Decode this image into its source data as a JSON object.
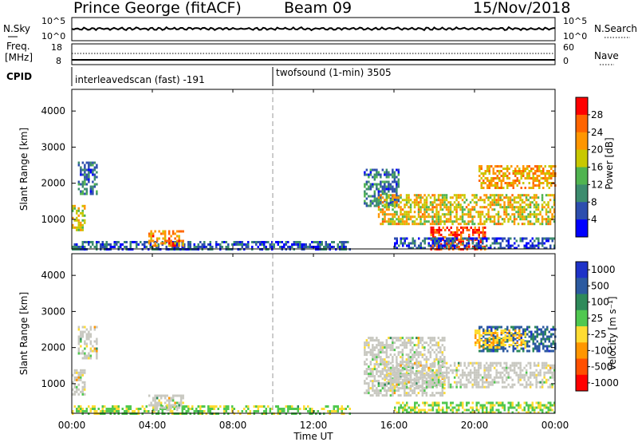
{
  "header": {
    "station": "Prince George (fitACF)",
    "beam": "Beam 09",
    "date": "15/Nov/2018"
  },
  "top_strip": {
    "left_label": "N.Sky",
    "right_label": "N.Search",
    "left_ticks": [
      "10^5",
      "10^0"
    ],
    "right_ticks": [
      "10^5",
      "10^0"
    ]
  },
  "freq_strip": {
    "label": "Freq.",
    "unit": "[MHz]",
    "left_ticks": [
      "18",
      "8"
    ],
    "right_ticks": [
      "60",
      "0"
    ],
    "right_label": "Nave"
  },
  "cpid": {
    "label": "CPID",
    "modes": [
      {
        "name": "interleavedscan (fast) -191",
        "start_hour": 0
      },
      {
        "name": "twofsound (1-min) 3505",
        "start_hour": 10
      }
    ]
  },
  "x_axis": {
    "label": "Time UT",
    "ticks": [
      "00:00",
      "04:00",
      "08:00",
      "12:00",
      "16:00",
      "20:00",
      "00:00"
    ],
    "range_hours": [
      0,
      24
    ]
  },
  "colors": {
    "ground_scatter": "#c8c8c0",
    "power_scale": [
      "#0000ff",
      "#2d4eae",
      "#3c8c6e",
      "#50b450",
      "#c8c800",
      "#ff9600",
      "#ff6400",
      "#ff0000"
    ],
    "velocity_scale": [
      "#1e32c8",
      "#2c5aa0",
      "#2e8a5a",
      "#50c850",
      "#ffdc32",
      "#ff9600",
      "#ff5000",
      "#ff0000"
    ]
  },
  "chart_data": [
    {
      "type": "heatmap",
      "panel": "power",
      "ylabel": "Slant Range [km]",
      "y_ticks": [
        1000,
        2000,
        3000,
        4000
      ],
      "ylim": [
        180,
        4600
      ],
      "xlim": [
        0,
        24
      ],
      "colorbar": {
        "label": "Power [dB]",
        "ticks": [
          "4",
          "8",
          "12",
          "16",
          "20",
          "24",
          "28"
        ],
        "range": [
          0,
          30
        ]
      },
      "regions": [
        {
          "x": [
            0.0,
            0.6
          ],
          "y": [
            700,
            1400
          ],
          "value": 16
        },
        {
          "x": [
            0.3,
            1.2
          ],
          "y": [
            1700,
            2600
          ],
          "value": 8
        },
        {
          "x": [
            0.0,
            13.8
          ],
          "y": [
            180,
            400
          ],
          "value": 6
        },
        {
          "x": [
            3.8,
            5.5
          ],
          "y": [
            300,
            700
          ],
          "value": 22
        },
        {
          "x": [
            14.5,
            16.2
          ],
          "y": [
            1400,
            2400
          ],
          "value": 8
        },
        {
          "x": [
            15.2,
            24.0
          ],
          "y": [
            900,
            1700
          ],
          "value": 18
        },
        {
          "x": [
            17.8,
            20.5
          ],
          "y": [
            200,
            800
          ],
          "value": 26
        },
        {
          "x": [
            20.2,
            24.0
          ],
          "y": [
            1900,
            2500
          ],
          "value": 20
        },
        {
          "x": [
            16.0,
            24.0
          ],
          "y": [
            180,
            500
          ],
          "value": 6
        }
      ]
    },
    {
      "type": "heatmap",
      "panel": "velocity",
      "ylabel": "Slant Range [km]",
      "y_ticks": [
        1000,
        2000,
        3000,
        4000
      ],
      "ylim": [
        180,
        4600
      ],
      "xlim": [
        0,
        24
      ],
      "colorbar": {
        "label": "Velocity [m s⁻¹]",
        "ticks": [
          "1000",
          "500",
          "100",
          "25",
          "-25",
          "-100",
          "-500",
          "-1000"
        ],
        "range": [
          -1000,
          1000
        ]
      },
      "regions": [
        {
          "x": [
            0.0,
            0.6
          ],
          "y": [
            700,
            1400
          ],
          "value": -150,
          "ground": true
        },
        {
          "x": [
            0.3,
            1.2
          ],
          "y": [
            1700,
            2600
          ],
          "value": 0,
          "ground": true
        },
        {
          "x": [
            0.0,
            13.8
          ],
          "y": [
            180,
            400
          ],
          "value": 60
        },
        {
          "x": [
            3.8,
            5.5
          ],
          "y": [
            300,
            700
          ],
          "value": 0,
          "ground": true
        },
        {
          "x": [
            14.5,
            18.5
          ],
          "y": [
            700,
            2300
          ],
          "value": 0,
          "ground": true
        },
        {
          "x": [
            15.5,
            24.0
          ],
          "y": [
            900,
            1600
          ],
          "value": 0,
          "ground": true
        },
        {
          "x": [
            20.2,
            24.0
          ],
          "y": [
            1900,
            2600
          ],
          "value": 600
        },
        {
          "x": [
            20.0,
            22.5
          ],
          "y": [
            2000,
            2500
          ],
          "value": -200
        },
        {
          "x": [
            16.0,
            24.0
          ],
          "y": [
            180,
            500
          ],
          "value": 40
        }
      ]
    }
  ]
}
